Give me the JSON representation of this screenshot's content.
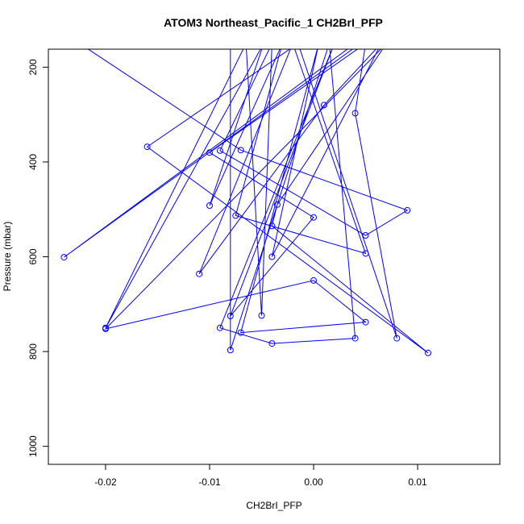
{
  "chart_data": {
    "type": "line",
    "title": "ATOM3 Northeast_Pacific_1 CH2BrI_PFP",
    "xlabel": "CH2BrI_PFP",
    "ylabel": "Pressure (mbar)",
    "xlim": [
      -0.0255,
      0.0179
    ],
    "ylim": [
      1038,
      162
    ],
    "y_reversed": true,
    "x_ticks": [
      -0.02,
      -0.01,
      0.0,
      0.01
    ],
    "x_tick_labels": [
      "-0.02",
      "-0.01",
      "0.00",
      "0.01"
    ],
    "y_ticks": [
      200,
      400,
      600,
      800,
      1000
    ],
    "y_tick_labels": [
      "200",
      "400",
      "600",
      "800",
      "1000"
    ],
    "grid": false,
    "legend": "none",
    "series_color": "#0000ff",
    "x": [
      -0.0225,
      -0.007,
      0.009,
      0.005,
      -0.009,
      -0.004,
      -0.005,
      -0.0065,
      -0.02,
      -0.0048,
      -0.01,
      -0.003,
      -0.0075,
      0.005,
      -0.002,
      -0.011,
      0.001,
      0.0065,
      -0.004,
      0.0005,
      -0.007,
      0.005,
      0.0,
      -0.02,
      0.007,
      -0.0035,
      -0.004,
      0.011,
      -0.016,
      -0.0015,
      0.008,
      0.004,
      0.005,
      -0.01,
      0.0,
      -0.008,
      0.002,
      -0.009,
      -0.004,
      0.004,
      0.0015,
      -0.008,
      -0.008,
      0.0045,
      -0.024,
      0.004,
      -0.0035,
      -0.0045,
      0.001,
      -0.0075,
      -0.0095
    ],
    "y": [
      150,
      375,
      502,
      555,
      376,
      150,
      724,
      150,
      750,
      150,
      492,
      150,
      513,
      593,
      150,
      636,
      280,
      150,
      600,
      150,
      760,
      738,
      650,
      752,
      150,
      490,
      535,
      803,
      368,
      150,
      772,
      297,
      150,
      380,
      517,
      725,
      150,
      750,
      783,
      772,
      150,
      797,
      150,
      150,
      601,
      150,
      150,
      150,
      150,
      150,
      150
    ]
  }
}
